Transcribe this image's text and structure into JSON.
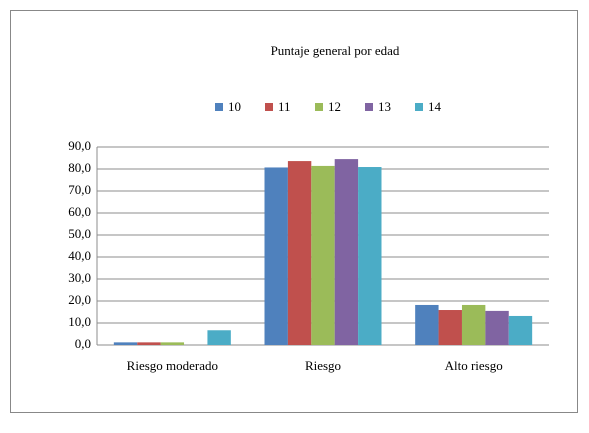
{
  "chart_data": {
    "type": "bar",
    "title": "Puntaje general por edad",
    "categories": [
      "Riesgo moderado",
      "Riesgo",
      "Alto riesgo"
    ],
    "series": [
      {
        "name": "10",
        "color": "#4f81bd",
        "values": [
          1.2,
          80.7,
          18.2
        ]
      },
      {
        "name": "11",
        "color": "#c0504d",
        "values": [
          1.2,
          83.6,
          15.9
        ]
      },
      {
        "name": "12",
        "color": "#9bbb59",
        "values": [
          1.2,
          81.4,
          18.2
        ]
      },
      {
        "name": "13",
        "color": "#8064a2",
        "values": [
          0,
          84.5,
          15.5
        ]
      },
      {
        "name": "14",
        "color": "#4bacc6",
        "values": [
          6.7,
          80.9,
          13.2
        ]
      }
    ],
    "ylim": [
      0,
      90
    ],
    "yticks": [
      {
        "value": 0,
        "label": "0,0"
      },
      {
        "value": 10,
        "label": "10,0"
      },
      {
        "value": 20,
        "label": "20,0"
      },
      {
        "value": 30,
        "label": "30,0"
      },
      {
        "value": 40,
        "label": "40,0"
      },
      {
        "value": 50,
        "label": "50,0"
      },
      {
        "value": 60,
        "label": "60,0"
      },
      {
        "value": 70,
        "label": "70,0"
      },
      {
        "value": 80,
        "label": "80,0"
      },
      {
        "value": 90,
        "label": "90,0"
      }
    ],
    "grid": true,
    "legend": "top"
  }
}
